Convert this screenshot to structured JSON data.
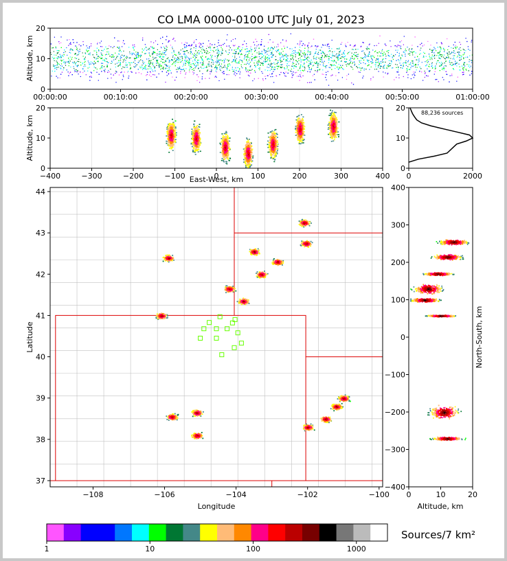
{
  "chart_data": {
    "type": "heatmap",
    "title": "CO LMA 0000-0100 UTC July 01, 2023",
    "colorbar": {
      "label": "Sources/7 km²",
      "tick_labels": [
        "1",
        "10",
        "100",
        "1000"
      ],
      "scale": "log",
      "range": [
        1,
        2000
      ],
      "colors": [
        "#ff55ff",
        "#8800ff",
        "#0000ff",
        "#0000ff",
        "#0077ff",
        "#00ffff",
        "#00ff00",
        "#007733",
        "#448888",
        "#ffff00",
        "#ffbb77",
        "#ff8800",
        "#ff0088",
        "#ff0000",
        "#bb0000",
        "#770000",
        "#000000",
        "#777777",
        "#bbbbbb",
        "#ffffff"
      ]
    },
    "panels": {
      "time_height": {
        "ylabel": "Altitude, km",
        "ylim": [
          0,
          20
        ],
        "y_tick_labels": [
          "0",
          "10",
          "20"
        ],
        "x_tick_labels": [
          "00:00:00",
          "00:10:00",
          "00:20:00",
          "00:30:00",
          "00:40:00",
          "00:50:00",
          "01:00:00"
        ],
        "xlim_minutes": [
          0,
          60
        ]
      },
      "ew_height": {
        "xlabel": "East-West, km",
        "ylabel": "Altitude, km",
        "xlim": [
          -400,
          400
        ],
        "ylim": [
          0,
          20
        ],
        "x_tick_labels": [
          "−400",
          "−300",
          "−200",
          "−100",
          "0",
          "100",
          "200",
          "300",
          "400"
        ],
        "y_tick_labels": [
          "0",
          "10",
          "20"
        ],
        "clusters": [
          {
            "x": -110,
            "z": 11
          },
          {
            "x": -50,
            "z": 10
          },
          {
            "x": 20,
            "z": 7
          },
          {
            "x": 75,
            "z": 5
          },
          {
            "x": 135,
            "z": 8
          },
          {
            "x": 200,
            "z": 13
          },
          {
            "x": 280,
            "z": 14
          }
        ]
      },
      "histogram": {
        "annotation": "88,236 sources",
        "xlim": [
          0,
          2000
        ],
        "ylim": [
          0,
          20
        ],
        "x_tick_labels": [
          "0",
          "2000"
        ],
        "y_tick_labels": [
          "0",
          "10",
          "20"
        ],
        "profile": [
          [
            0,
            2
          ],
          [
            300,
            3
          ],
          [
            800,
            4
          ],
          [
            1200,
            5
          ],
          [
            1400,
            7
          ],
          [
            1500,
            8
          ],
          [
            1800,
            9
          ],
          [
            2000,
            10
          ],
          [
            1900,
            11
          ],
          [
            1500,
            12
          ],
          [
            1100,
            13
          ],
          [
            700,
            14
          ],
          [
            400,
            15
          ],
          [
            250,
            16
          ],
          [
            180,
            17
          ],
          [
            120,
            18
          ],
          [
            80,
            19
          ],
          [
            40,
            20
          ]
        ]
      },
      "plan_view": {
        "xlabel": "Longitude",
        "ylabel": "Latitude",
        "xlim": [
          -109.2,
          -99.9
        ],
        "ylim": [
          36.85,
          44.1
        ],
        "x_tick_labels": [
          "−108",
          "−106",
          "−104",
          "−102",
          "−100"
        ],
        "y_tick_labels": [
          "37",
          "38",
          "39",
          "40",
          "41",
          "42",
          "43",
          "44"
        ],
        "stations": [
          [
            -104.45,
            40.97
          ],
          [
            -104.03,
            40.9
          ],
          [
            -104.1,
            40.82
          ],
          [
            -104.75,
            40.83
          ],
          [
            -104.25,
            40.68
          ],
          [
            -104.55,
            40.68
          ],
          [
            -104.9,
            40.68
          ],
          [
            -103.95,
            40.58
          ],
          [
            -104.55,
            40.45
          ],
          [
            -105.0,
            40.45
          ],
          [
            -103.85,
            40.33
          ],
          [
            -104.05,
            40.22
          ],
          [
            -104.4,
            40.05
          ]
        ],
        "clusters": [
          {
            "lon": -102.05,
            "lat": 42.75
          },
          {
            "lon": -102.1,
            "lat": 43.25
          },
          {
            "lon": -103.5,
            "lat": 42.55
          },
          {
            "lon": -102.85,
            "lat": 42.3
          },
          {
            "lon": -103.3,
            "lat": 42.0
          },
          {
            "lon": -104.2,
            "lat": 41.65
          },
          {
            "lon": -103.8,
            "lat": 41.35
          },
          {
            "lon": -105.9,
            "lat": 42.4
          },
          {
            "lon": -106.1,
            "lat": 41.0
          },
          {
            "lon": -105.8,
            "lat": 38.55
          },
          {
            "lon": -105.1,
            "lat": 38.65
          },
          {
            "lon": -105.1,
            "lat": 38.1
          },
          {
            "lon": -102.0,
            "lat": 38.3
          },
          {
            "lon": -101.5,
            "lat": 38.5
          },
          {
            "lon": -101.0,
            "lat": 39.0
          },
          {
            "lon": -101.2,
            "lat": 38.8
          }
        ]
      },
      "ns_height": {
        "xlabel": "Altitude, km",
        "ylabel": "North-South, km",
        "xlim": [
          0,
          20
        ],
        "ylim": [
          -400,
          400
        ],
        "x_tick_labels": [
          "0",
          "10",
          "20"
        ],
        "y_tick_labels": [
          "−400",
          "−300",
          "−200",
          "−100",
          "0",
          "100",
          "200",
          "300",
          "400"
        ]
      }
    }
  }
}
